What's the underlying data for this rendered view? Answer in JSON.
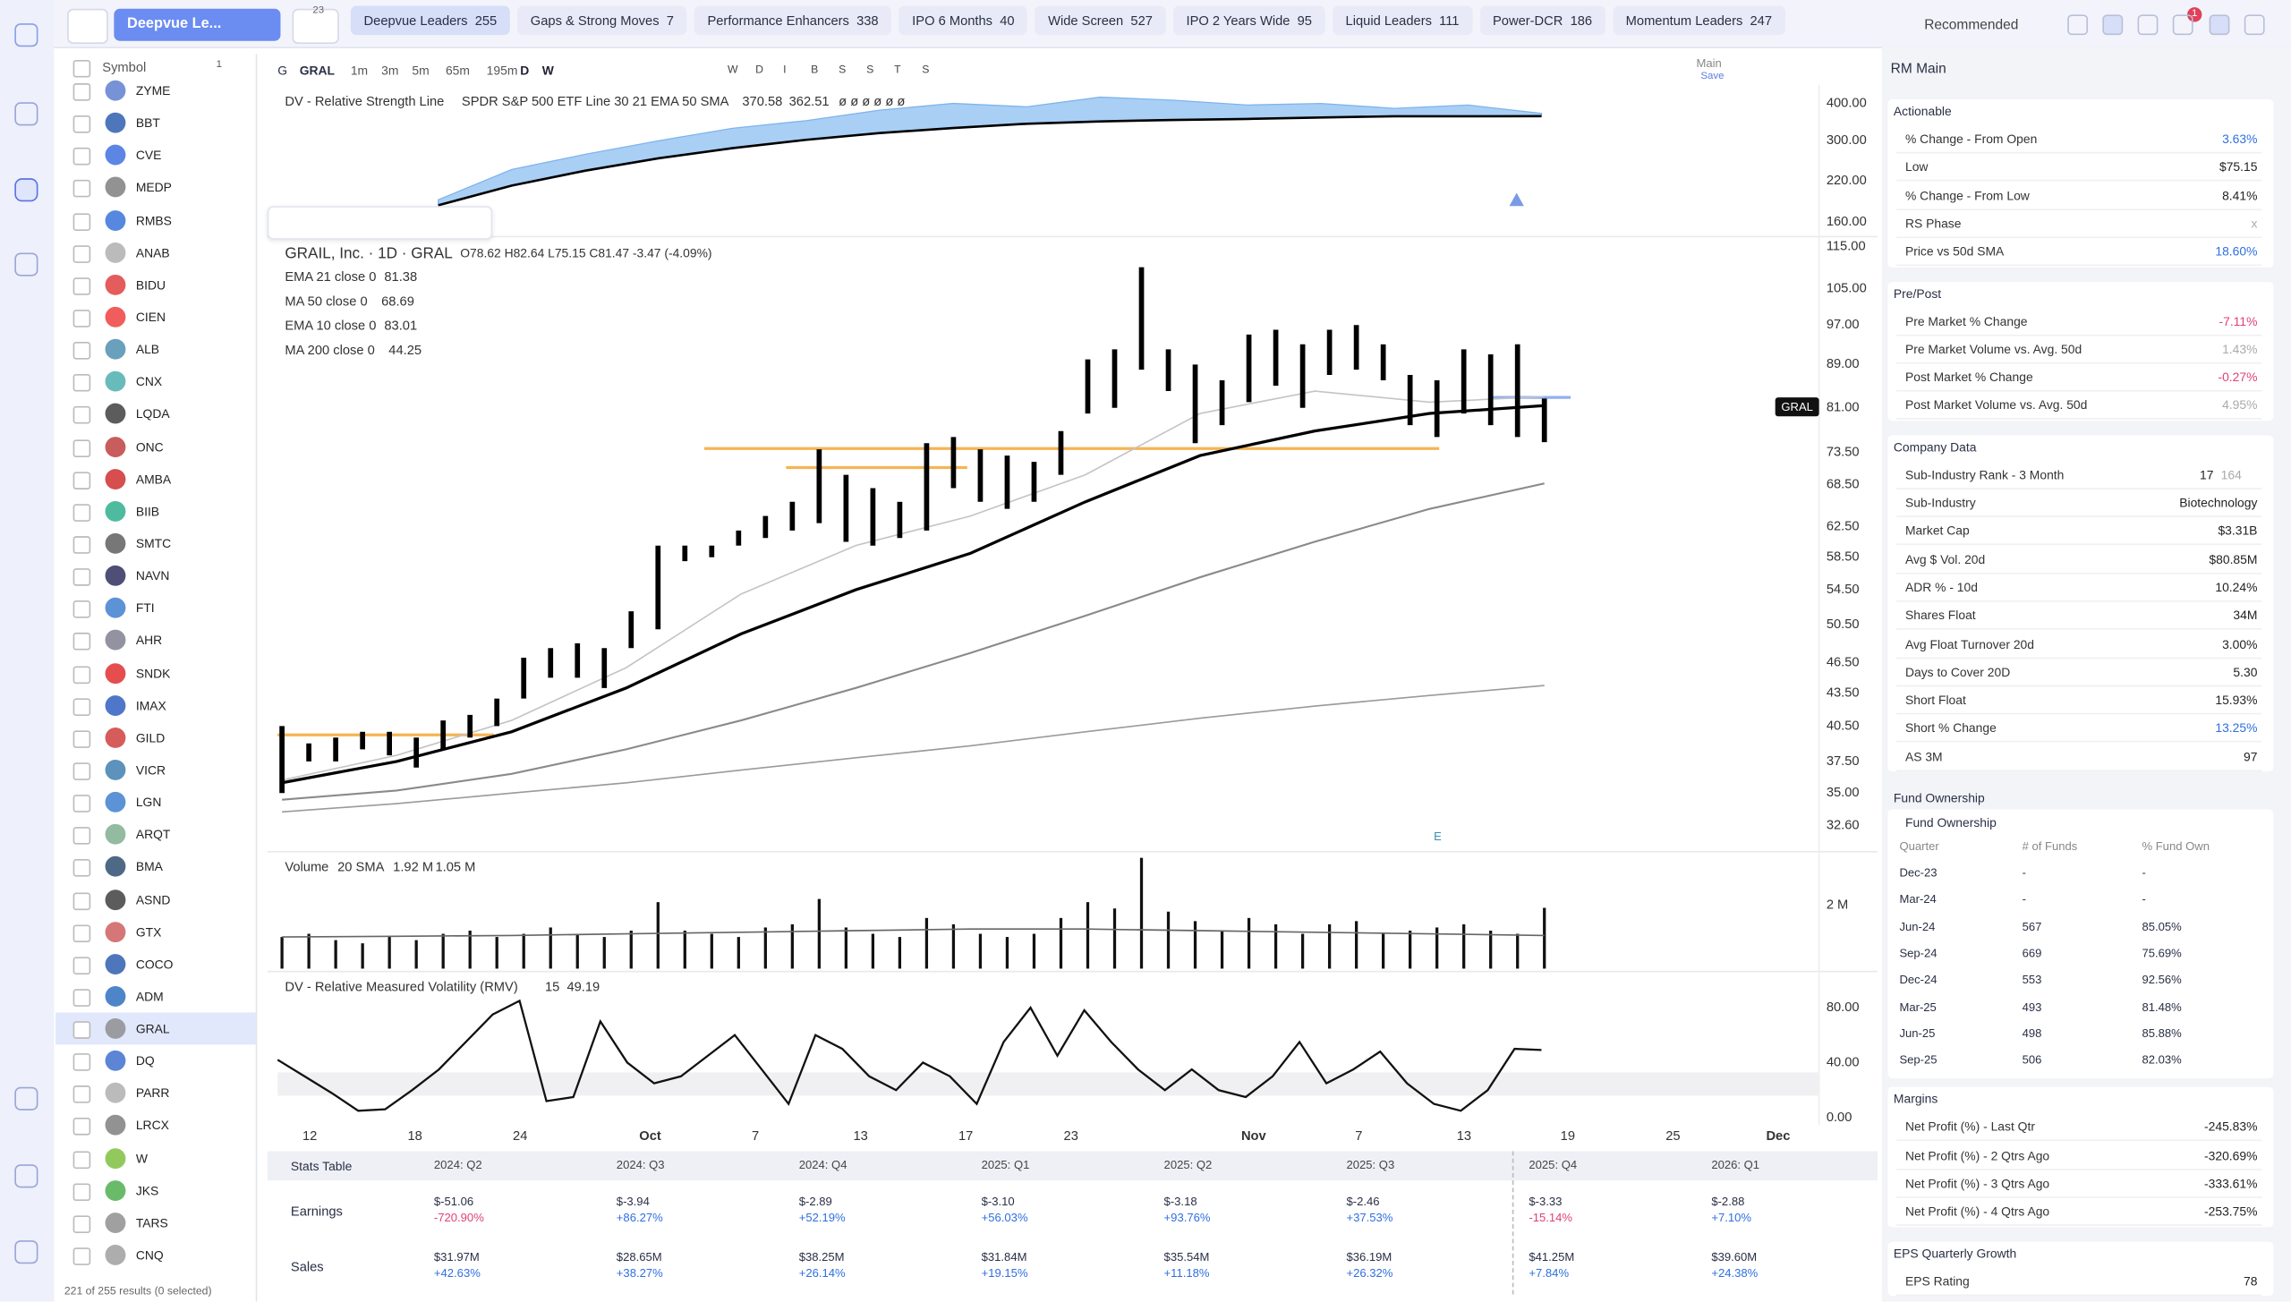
{
  "topbar": {
    "watchlist": "Deepvue Le...",
    "filter_badge": "23",
    "tabs": [
      {
        "name": "Deepvue Leaders",
        "count": "255"
      },
      {
        "name": "Gaps & Strong Moves",
        "count": "7"
      },
      {
        "name": "Performance Enhancers",
        "count": "338"
      },
      {
        "name": "IPO 6 Months",
        "count": "40"
      },
      {
        "name": "Wide Screen",
        "count": "527"
      },
      {
        "name": "IPO 2 Years Wide",
        "count": "95"
      },
      {
        "name": "Liquid Leaders",
        "count": "111"
      },
      {
        "name": "Power-DCR",
        "count": "186"
      },
      {
        "name": "Momentum Leaders",
        "count": "247"
      }
    ],
    "sort": "Recommended",
    "notifications": "1"
  },
  "symbols": {
    "header": "Symbol",
    "badge": "1",
    "selected_index": 29,
    "items": [
      "ZYME",
      "BBT",
      "CVE",
      "MEDP",
      "RMBS",
      "ANAB",
      "BIDU",
      "CIEN",
      "ALB",
      "CNX",
      "LQDA",
      "ONC",
      "AMBA",
      "BIIB",
      "SMTC",
      "NAVN",
      "FTI",
      "AHR",
      "SNDK",
      "IMAX",
      "GILD",
      "VICR",
      "LGN",
      "ARQT",
      "BMA",
      "ASND",
      "GTX",
      "COCO",
      "ADM",
      "GRAL",
      "DQ",
      "PARR",
      "LRCX",
      "W",
      "JKS",
      "TARS",
      "CNQ"
    ],
    "footer": "221 of 255 results (0 selected)"
  },
  "toolbar": {
    "symbol_prefix": "G",
    "symbol": "GRAL",
    "timeframes": [
      "1m",
      "3m",
      "5m",
      "65m",
      "195m",
      "D",
      "W"
    ],
    "markers": [
      "W",
      "D",
      "I",
      "B",
      "S",
      "S",
      "T",
      "S"
    ],
    "layout": "Main",
    "save": "Save"
  },
  "chart_data": [
    {
      "type": "area-line",
      "title": "DV - Relative Strength Line",
      "subtitle": "SPDR S&P 500 ETF Line 30 21 EMA 50 SMA",
      "markers": "ø ø ø ø ø ø",
      "log_scale": true,
      "ylim": [
        146,
        452
      ],
      "yticks": [
        {
          "value": 400,
          "label": "400.00"
        },
        {
          "value": 300,
          "label": "300.00"
        },
        {
          "value": 220,
          "label": "220.00"
        },
        {
          "value": 160,
          "label": "160.00"
        }
      ],
      "series": [
        {
          "color": "#a9cff5",
          "values": [
            190,
            240,
            270,
            300,
            330,
            350,
            380,
            400,
            390,
            420,
            410,
            395,
            400,
            385,
            395,
            370.58
          ],
          "value_label": "370.58"
        },
        {
          "color": "#000000",
          "values": [
            182,
            212,
            238,
            262,
            283,
            302,
            318,
            331,
            342,
            348,
            352,
            355,
            359,
            362,
            362,
            362.51
          ],
          "value_label": "362.51"
        }
      ]
    },
    {
      "type": "ohlc",
      "title": "GRAIL, Inc. · 1D · GRAL",
      "ohlc_text": "O78.62 H82.64 L75.15 C81.47 -3.47 (-4.09%)",
      "price_tag": "GRAL",
      "earnings_marker": "E",
      "log_scale": true,
      "ylim": [
        31.1,
        117.2
      ],
      "yticks": [
        {
          "value": 115,
          "label": "115.00"
        },
        {
          "value": 105,
          "label": "105.00"
        },
        {
          "value": 97,
          "label": "97.00"
        },
        {
          "value": 89,
          "label": "89.00"
        },
        {
          "value": 81,
          "label": "81.00"
        },
        {
          "value": 73.5,
          "label": "73.50"
        },
        {
          "value": 68.5,
          "label": "68.50"
        },
        {
          "value": 62.5,
          "label": "62.50"
        },
        {
          "value": 58.5,
          "label": "58.50"
        },
        {
          "value": 54.5,
          "label": "54.50"
        },
        {
          "value": 50.5,
          "label": "50.50"
        },
        {
          "value": 46.5,
          "label": "46.50"
        },
        {
          "value": 43.5,
          "label": "43.50"
        },
        {
          "value": 40.5,
          "label": "40.50"
        },
        {
          "value": 37.5,
          "label": "37.50"
        },
        {
          "value": 35,
          "label": "35.00"
        },
        {
          "value": 32.6,
          "label": "32.60"
        }
      ],
      "high": [
        40.5,
        39,
        39.5,
        40,
        40,
        39.5,
        41,
        41.5,
        43,
        47,
        48,
        48.5,
        48,
        52,
        60,
        60,
        60,
        62,
        64,
        66,
        74,
        70,
        68,
        66,
        75,
        76,
        74,
        73,
        72,
        77,
        90,
        92,
        110,
        92,
        89,
        86,
        95,
        96,
        93,
        96,
        97,
        93,
        87,
        86,
        92,
        91,
        93,
        82.64
      ],
      "low": [
        35,
        37.5,
        37.5,
        38.5,
        38,
        37,
        38.5,
        39.5,
        40.5,
        43,
        45,
        45,
        44,
        48,
        50,
        58,
        58.5,
        60,
        61,
        62,
        63,
        60.5,
        60,
        61,
        62,
        68,
        66,
        65,
        66,
        70,
        80,
        81,
        88,
        84,
        75,
        78,
        82,
        85,
        81,
        87,
        88,
        86,
        78,
        76,
        80,
        78,
        76,
        75.15
      ],
      "series": [
        {
          "name": "EMA 21 close 0",
          "color": "#000000",
          "width": 2,
          "values": [
            35.8,
            37.5,
            40,
            44,
            49.5,
            54.5,
            59,
            66,
            73,
            77,
            80,
            81.38
          ],
          "value_label": "81.38"
        },
        {
          "name": "MA 50 close 0",
          "color": "#8a8a8a",
          "width": 1.3,
          "values": [
            34.5,
            35.2,
            36.5,
            38.5,
            41,
            44,
            47.5,
            51.5,
            56,
            60.5,
            65,
            68.69
          ],
          "value_label": "68.69"
        },
        {
          "name": "EMA 10 close 0",
          "color": "#c4c4c4",
          "width": 1,
          "values": [
            36,
            38,
            41,
            46,
            54,
            60,
            64,
            70,
            80,
            84,
            82,
            83.01
          ],
          "value_label": "83.01"
        },
        {
          "name": "MA 200 close 0",
          "color": "#9a9a9a",
          "width": 1,
          "values": [
            33.6,
            34.2,
            35,
            35.8,
            36.8,
            37.8,
            38.8,
            40,
            41.2,
            42.3,
            43.3,
            44.25
          ],
          "value_label": "44.25"
        }
      ]
    },
    {
      "type": "bar",
      "title": "Volume",
      "subtitle": "20 SMA",
      "ylim": [
        0,
        3.6
      ],
      "yticks": [
        {
          "value": 2,
          "label": "2 M"
        }
      ],
      "values": [
        1.0,
        1.1,
        0.9,
        0.8,
        1.0,
        0.9,
        1.1,
        1.2,
        1.0,
        1.1,
        1.3,
        1.1,
        1.0,
        1.2,
        2.1,
        1.2,
        1.1,
        1.0,
        1.3,
        1.4,
        2.2,
        1.3,
        1.1,
        1.0,
        1.6,
        1.4,
        1.1,
        1.0,
        1.1,
        1.6,
        2.1,
        1.9,
        3.5,
        1.8,
        1.5,
        1.2,
        1.6,
        1.4,
        1.1,
        1.4,
        1.5,
        1.1,
        1.2,
        1.3,
        1.4,
        1.2,
        1.1,
        1.92
      ],
      "value_label": "1.92 M",
      "sma": {
        "values": [
          1.0,
          1.02,
          1.05,
          1.1,
          1.15,
          1.2,
          1.25,
          1.25,
          1.2,
          1.15,
          1.1,
          1.05
        ],
        "value_label": "1.05 M"
      }
    },
    {
      "type": "line",
      "title": "DV - Relative Measured Volatility (RMV)",
      "subtitle": "15",
      "ylim": [
        0,
        103
      ],
      "yticks": [
        {
          "value": 80,
          "label": "80.00"
        },
        {
          "value": 40,
          "label": "40.00"
        },
        {
          "value": 0,
          "label": "0.00"
        }
      ],
      "values": [
        42,
        30,
        18,
        5,
        6,
        20,
        35,
        55,
        75,
        85,
        12,
        15,
        70,
        40,
        25,
        30,
        45,
        60,
        35,
        10,
        60,
        50,
        30,
        20,
        40,
        30,
        10,
        55,
        80,
        45,
        78,
        55,
        35,
        20,
        35,
        20,
        15,
        30,
        55,
        25,
        35,
        48,
        25,
        10,
        5,
        20,
        50,
        49.19
      ],
      "value_label": "49.19"
    }
  ],
  "x_axis": [
    "12",
    "18",
    "24",
    "Oct",
    "7",
    "13",
    "17",
    "23",
    "Nov",
    "7",
    "13",
    "19",
    "25",
    "Dec"
  ],
  "stats_table": {
    "title": "Stats Table",
    "columns": [
      "2024: Q2",
      "2024: Q3",
      "2024: Q4",
      "2025: Q1",
      "2025: Q2",
      "2025: Q3",
      "2025: Q4",
      "2026: Q1"
    ],
    "rows": [
      {
        "name": "Earnings",
        "cells": [
          {
            "value": "$-51.06",
            "change": "-720.90%"
          },
          {
            "value": "$-3.94",
            "change": "+86.27%"
          },
          {
            "value": "$-2.89",
            "change": "+52.19%"
          },
          {
            "value": "$-3.10",
            "change": "+56.03%"
          },
          {
            "value": "$-3.18",
            "change": "+93.76%"
          },
          {
            "value": "$-2.46",
            "change": "+37.53%"
          },
          {
            "value": "$-3.33",
            "change": "-15.14%"
          },
          {
            "value": "$-2.88",
            "change": "+7.10%"
          }
        ]
      },
      {
        "name": "Sales",
        "cells": [
          {
            "value": "$31.97M",
            "change": "+42.63%"
          },
          {
            "value": "$28.65M",
            "change": "+38.27%"
          },
          {
            "value": "$38.25M",
            "change": "+26.14%"
          },
          {
            "value": "$31.84M",
            "change": "+19.15%"
          },
          {
            "value": "$35.54M",
            "change": "+11.18%"
          },
          {
            "value": "$36.19M",
            "change": "+26.32%"
          },
          {
            "value": "$41.25M",
            "change": "+7.84%"
          },
          {
            "value": "$39.60M",
            "change": "+24.38%"
          }
        ]
      }
    ]
  },
  "right_panel": {
    "title": "RM Main",
    "sections": [
      {
        "title": "Actionable",
        "rows": [
          {
            "label": "% Change - From Open",
            "value": "3.63%",
            "color": "blue"
          },
          {
            "label": "Low",
            "value": "$75.15"
          },
          {
            "label": "% Change - From Low",
            "value": "8.41%"
          },
          {
            "label": "RS Phase",
            "value": "x",
            "color": "grey"
          },
          {
            "label": "Price vs 50d SMA",
            "value": "18.60%",
            "color": "blue"
          }
        ]
      },
      {
        "title": "Pre/Post",
        "rows": [
          {
            "label": "Pre Market % Change",
            "value": "-7.11%",
            "color": "pink"
          },
          {
            "label": "Pre Market Volume vs. Avg. 50d",
            "value": "1.43%",
            "color": "grey"
          },
          {
            "label": "Post Market % Change",
            "value": "-0.27%",
            "color": "pink"
          },
          {
            "label": "Post Market Volume vs. Avg. 50d",
            "value": "4.95%",
            "color": "grey"
          }
        ]
      },
      {
        "title": "Company Data",
        "rows": [
          {
            "label": "Sub-Industry Rank - 3 Month",
            "value": "17",
            "extra": "164"
          },
          {
            "label": "Sub-Industry",
            "value": "Biotechnology"
          },
          {
            "label": "Market Cap",
            "value": "$3.31B"
          },
          {
            "label": "Avg $ Vol. 20d",
            "value": "$80.85M"
          },
          {
            "label": "ADR % - 10d",
            "value": "10.24%"
          },
          {
            "label": "Shares Float",
            "value": "34M"
          },
          {
            "label": "Avg Float Turnover 20d",
            "value": "3.00%"
          },
          {
            "label": "Days to Cover 20D",
            "value": "5.30"
          },
          {
            "label": "Short Float",
            "value": "15.93%"
          },
          {
            "label": "Short % Change",
            "value": "13.25%",
            "color": "blue"
          },
          {
            "label": "AS 3M",
            "value": "97"
          }
        ]
      }
    ],
    "fund_ownership": {
      "title": "Fund Ownership",
      "subtitle": "Fund Ownership",
      "headers": [
        "Quarter",
        "# of Funds",
        "% Fund Own"
      ],
      "rows": [
        [
          "Dec-23",
          "-",
          "-"
        ],
        [
          "Mar-24",
          "-",
          "-"
        ],
        [
          "Jun-24",
          "567",
          "85.05%"
        ],
        [
          "Sep-24",
          "669",
          "75.69%"
        ],
        [
          "Dec-24",
          "553",
          "92.56%"
        ],
        [
          "Mar-25",
          "493",
          "81.48%"
        ],
        [
          "Jun-25",
          "498",
          "85.88%"
        ],
        [
          "Sep-25",
          "506",
          "82.03%"
        ]
      ]
    },
    "sections2": [
      {
        "title": "Margins",
        "rows": [
          {
            "label": "Net Profit (%) - Last Qtr",
            "value": "-245.83%"
          },
          {
            "label": "Net Profit (%) - 2 Qtrs Ago",
            "value": "-320.69%"
          },
          {
            "label": "Net Profit (%) - 3 Qtrs Ago",
            "value": "-333.61%"
          },
          {
            "label": "Net Profit (%) - 4 Qtrs Ago",
            "value": "-253.75%"
          }
        ]
      },
      {
        "title": "EPS Quarterly Growth",
        "rows": [
          {
            "label": "EPS Rating",
            "value": "78"
          }
        ]
      }
    ]
  }
}
